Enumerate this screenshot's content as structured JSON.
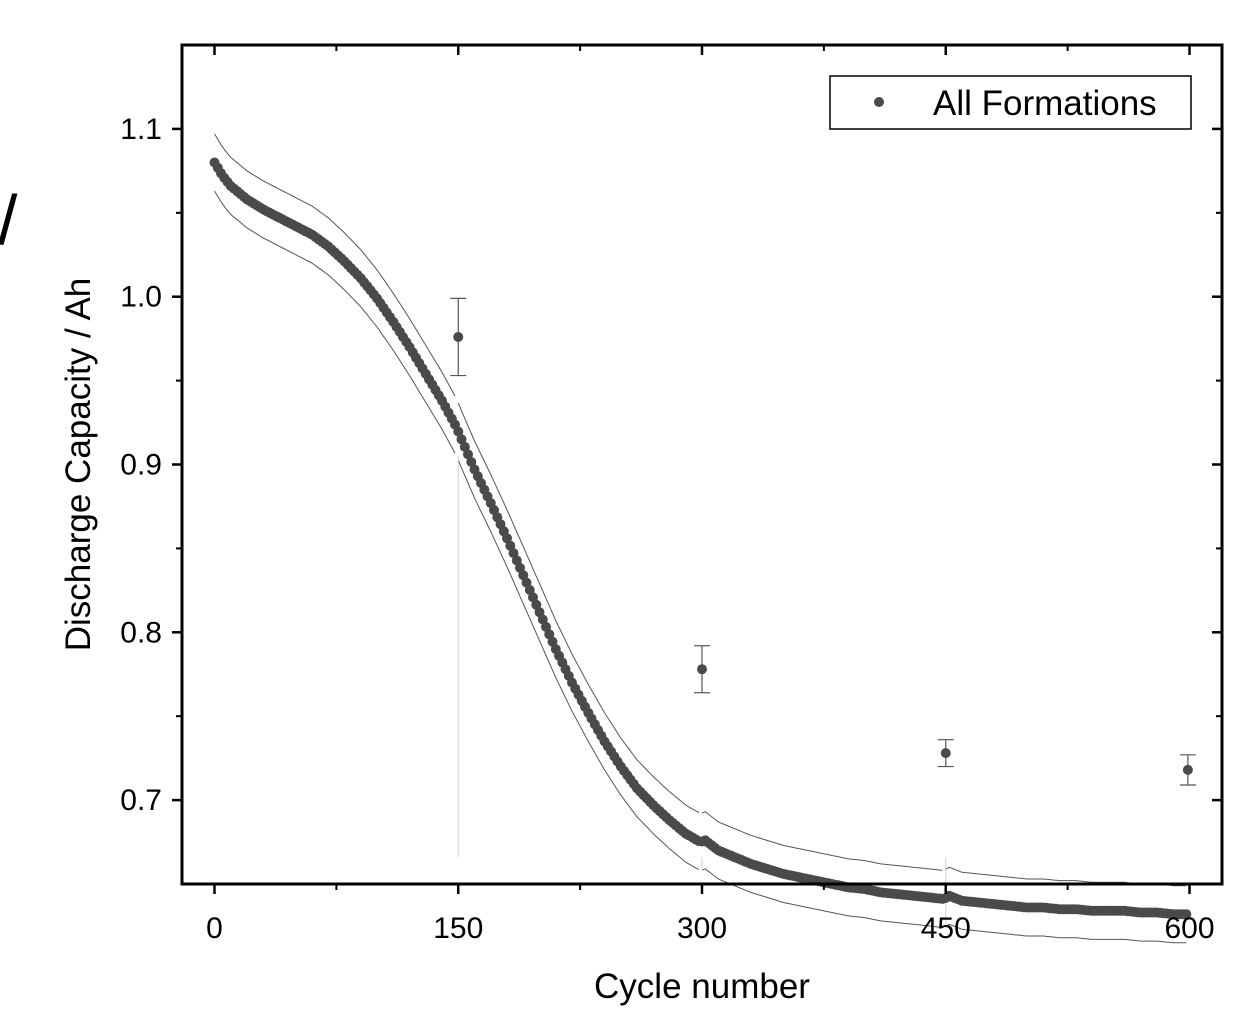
{
  "chart_data": {
    "type": "scatter",
    "xlabel": "Cycle number",
    "ylabel": "Discharge Capacity / Ah",
    "xlim": [
      -20,
      620
    ],
    "ylim": [
      0.65,
      1.15
    ],
    "xticks": [
      "0",
      "150",
      "300",
      "450",
      "600"
    ],
    "xtick_values": [
      0,
      150,
      300,
      450,
      600
    ],
    "yticks": [
      "0.7",
      "0.8",
      "0.9",
      "1.0",
      "1.1"
    ],
    "ytick_values": [
      0.7,
      0.8,
      0.9,
      1.0,
      1.1
    ],
    "grid": false,
    "legend": {
      "position": "top-right",
      "entries": [
        "All Formations"
      ]
    },
    "partial_edge_glyph": "/",
    "series": [
      {
        "name": "All Formations",
        "color": "#4a4a4a",
        "x": [
          0,
          5,
          10,
          20,
          30,
          40,
          50,
          60,
          70,
          80,
          90,
          100,
          110,
          120,
          130,
          140,
          149,
          152,
          160,
          170,
          180,
          190,
          200,
          210,
          220,
          230,
          240,
          250,
          260,
          270,
          280,
          290,
          299,
          302,
          310,
          320,
          330,
          340,
          350,
          360,
          370,
          380,
          390,
          400,
          410,
          420,
          430,
          440,
          449,
          452,
          460,
          470,
          480,
          490,
          500,
          510,
          520,
          530,
          540,
          550,
          560,
          570,
          580,
          590,
          599
        ],
        "y": [
          1.08,
          1.072,
          1.066,
          1.058,
          1.052,
          1.047,
          1.042,
          1.037,
          1.03,
          1.021,
          1.011,
          0.999,
          0.985,
          0.97,
          0.954,
          0.938,
          0.922,
          0.915,
          0.897,
          0.877,
          0.856,
          0.834,
          0.812,
          0.79,
          0.77,
          0.752,
          0.735,
          0.72,
          0.707,
          0.697,
          0.688,
          0.68,
          0.675,
          0.676,
          0.67,
          0.666,
          0.662,
          0.659,
          0.656,
          0.654,
          0.652,
          0.65,
          0.648,
          0.647,
          0.645,
          0.644,
          0.643,
          0.642,
          0.641,
          0.643,
          0.64,
          0.639,
          0.638,
          0.637,
          0.636,
          0.636,
          0.635,
          0.635,
          0.634,
          0.634,
          0.634,
          0.633,
          0.633,
          0.632,
          0.632
        ],
        "band": 0.017
      },
      {
        "name": "",
        "color": "#4a4a4a",
        "x": [
          150,
          300,
          450,
          599
        ],
        "y": [
          0.976,
          0.778,
          0.728,
          0.718
        ],
        "error": [
          0.023,
          0.014,
          0.008,
          0.009
        ]
      }
    ]
  }
}
